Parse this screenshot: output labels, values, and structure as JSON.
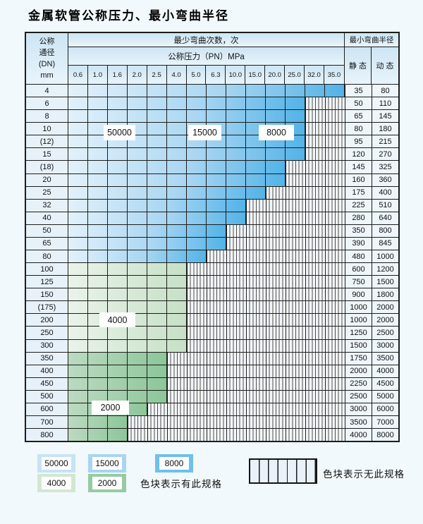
{
  "page": {
    "title": "金属软管公称压力、最小弯曲半径"
  },
  "table": {
    "header": {
      "dn_lines": [
        "公称",
        "通径",
        "(DN)",
        "mm"
      ],
      "bend_cycles_title": "最少弯曲次数，次",
      "min_bend_radius_title": "最小弯曲半径",
      "pressure_title": "公称压力（PN）MPa",
      "static_label": "静 态",
      "dynamic_label": "动 态",
      "pressure_columns": [
        "0.6",
        "1.0",
        "1.6",
        "2.0",
        "2.5",
        "4.0",
        "5.0",
        "6.3",
        "10.0",
        "15.0",
        "20.0",
        "25.0",
        "32.0",
        "35.0"
      ]
    },
    "rows": [
      {
        "dn": "4",
        "colored_cols": 14,
        "colored_through": "35.0",
        "zone": "blue",
        "static": "35",
        "dynamic": "80"
      },
      {
        "dn": "6",
        "colored_cols": 12,
        "colored_through": "25.0",
        "zone": "blue",
        "static": "50",
        "dynamic": "110"
      },
      {
        "dn": "8",
        "colored_cols": 12,
        "colored_through": "25.0",
        "zone": "blue",
        "static": "65",
        "dynamic": "145"
      },
      {
        "dn": "10",
        "colored_cols": 12,
        "colored_through": "25.0",
        "zone": "blue",
        "static": "80",
        "dynamic": "180"
      },
      {
        "dn": "(12)",
        "colored_cols": 12,
        "colored_through": "25.0",
        "zone": "blue",
        "static": "95",
        "dynamic": "215"
      },
      {
        "dn": "15",
        "colored_cols": 12,
        "colored_through": "25.0",
        "zone": "blue",
        "static": "120",
        "dynamic": "270"
      },
      {
        "dn": "(18)",
        "colored_cols": 11,
        "colored_through": "20.0",
        "zone": "blue",
        "static": "145",
        "dynamic": "325"
      },
      {
        "dn": "20",
        "colored_cols": 11,
        "colored_through": "20.0",
        "zone": "blue",
        "static": "160",
        "dynamic": "360"
      },
      {
        "dn": "25",
        "colored_cols": 10,
        "colored_through": "15.0",
        "zone": "blue",
        "static": "175",
        "dynamic": "400"
      },
      {
        "dn": "32",
        "colored_cols": 9,
        "colored_through": "10.0",
        "zone": "blue",
        "static": "225",
        "dynamic": "510"
      },
      {
        "dn": "40",
        "colored_cols": 9,
        "colored_through": "10.0",
        "zone": "blue",
        "static": "280",
        "dynamic": "640"
      },
      {
        "dn": "50",
        "colored_cols": 8,
        "colored_through": "6.3",
        "zone": "blue",
        "static": "350",
        "dynamic": "800"
      },
      {
        "dn": "65",
        "colored_cols": 8,
        "colored_through": "6.3",
        "zone": "blue",
        "static": "390",
        "dynamic": "845"
      },
      {
        "dn": "80",
        "colored_cols": 7,
        "colored_through": "5.0",
        "zone": "blue",
        "static": "480",
        "dynamic": "1000"
      },
      {
        "dn": "100",
        "colored_cols": 6,
        "colored_through": "4.0",
        "zone": "greenL",
        "static": "600",
        "dynamic": "1200"
      },
      {
        "dn": "125",
        "colored_cols": 6,
        "colored_through": "4.0",
        "zone": "greenL",
        "static": "750",
        "dynamic": "1500"
      },
      {
        "dn": "150",
        "colored_cols": 6,
        "colored_through": "4.0",
        "zone": "greenL",
        "static": "900",
        "dynamic": "1800"
      },
      {
        "dn": "(175)",
        "colored_cols": 6,
        "colored_through": "4.0",
        "zone": "greenL",
        "static": "1000",
        "dynamic": "2000"
      },
      {
        "dn": "200",
        "colored_cols": 6,
        "colored_through": "4.0",
        "zone": "greenL",
        "static": "1000",
        "dynamic": "2000"
      },
      {
        "dn": "250",
        "colored_cols": 6,
        "colored_through": "4.0",
        "zone": "greenL",
        "static": "1250",
        "dynamic": "2500"
      },
      {
        "dn": "300",
        "colored_cols": 6,
        "colored_through": "4.0",
        "zone": "greenL",
        "static": "1500",
        "dynamic": "3000"
      },
      {
        "dn": "350",
        "colored_cols": 5,
        "colored_through": "2.5",
        "zone": "greenD",
        "static": "1750",
        "dynamic": "3500"
      },
      {
        "dn": "400",
        "colored_cols": 5,
        "colored_through": "2.5",
        "zone": "greenD",
        "static": "2000",
        "dynamic": "4000"
      },
      {
        "dn": "450",
        "colored_cols": 5,
        "colored_through": "2.5",
        "zone": "greenD",
        "static": "2250",
        "dynamic": "4500"
      },
      {
        "dn": "500",
        "colored_cols": 5,
        "colored_through": "2.5",
        "zone": "greenD",
        "static": "2500",
        "dynamic": "5000"
      },
      {
        "dn": "600",
        "colored_cols": 4,
        "colored_through": "2.0",
        "zone": "greenD",
        "static": "3000",
        "dynamic": "6000"
      },
      {
        "dn": "700",
        "colored_cols": 3,
        "colored_through": "1.6",
        "zone": "greenD",
        "static": "3500",
        "dynamic": "7000"
      },
      {
        "dn": "800",
        "colored_cols": 3,
        "colored_through": "1.6",
        "zone": "greenD",
        "static": "4000",
        "dynamic": "8000"
      }
    ]
  },
  "overlay_labels": [
    "50000",
    "15000",
    "8000",
    "4000",
    "2000"
  ],
  "legend": {
    "items": [
      {
        "label": "50000",
        "color": "#c7e3f5"
      },
      {
        "label": "15000",
        "color": "#a8d5f1"
      },
      {
        "label": "8000",
        "color": "#6fc0eb"
      },
      {
        "label": "4000",
        "color": "#d2e7d2"
      },
      {
        "label": "2000",
        "color": "#96cba1"
      }
    ],
    "has_spec_text": "色块表示有此规格",
    "no_spec_text": "色块表示无此规格"
  },
  "colors": {
    "page_bg": "#f2f9fc",
    "grid_line": "#1d1d1b",
    "header_bg": "#d7eaf7",
    "blue_deep": "#52b3e8",
    "blue_mid": "#a9d6f2",
    "blue_light": "#e2f1fb",
    "green_light": "#c6e0c6",
    "green_deep": "#8cc699",
    "hatch_bg": "#f3f7fb"
  }
}
